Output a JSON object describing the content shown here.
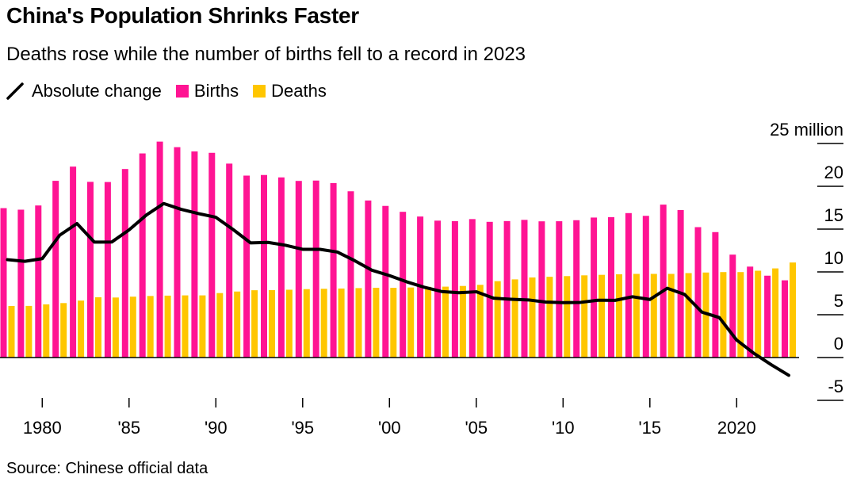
{
  "colors": {
    "births": "#ff1493",
    "deaths": "#ffc600",
    "line": "#000000"
  },
  "chart_data": {
    "type": "bar",
    "title": "China's Population Shrinks Faster",
    "subtitle": "Deaths rose while the number of births fell to a record in 2023",
    "source": "Source: Chinese official data",
    "y_unit_label": "25 million",
    "ylim": [
      -5,
      25
    ],
    "y_ticks": [
      -5,
      0,
      5,
      10,
      15,
      20,
      25
    ],
    "y_tick_labels": [
      "-5",
      "0",
      "5",
      "10",
      "15",
      "20",
      "25 million"
    ],
    "x_ticks": [
      1980,
      1985,
      1990,
      1995,
      2000,
      2005,
      2010,
      2015,
      2020
    ],
    "x_tick_labels": [
      "1980",
      "'85",
      "'90",
      "'95",
      "'00",
      "'05",
      "'10",
      "'15",
      "2020"
    ],
    "legend": {
      "placement": "top-left",
      "entries": [
        "Absolute change",
        "Births",
        "Deaths"
      ]
    },
    "grid": false,
    "x": [
      1978,
      1979,
      1980,
      1981,
      1982,
      1983,
      1984,
      1985,
      1986,
      1987,
      1988,
      1989,
      1990,
      1991,
      1992,
      1993,
      1994,
      1995,
      1996,
      1997,
      1998,
      1999,
      2000,
      2001,
      2002,
      2003,
      2004,
      2005,
      2006,
      2007,
      2008,
      2009,
      2010,
      2011,
      2012,
      2013,
      2014,
      2015,
      2016,
      2017,
      2018,
      2019,
      2020,
      2021,
      2022,
      2023
    ],
    "series": [
      {
        "name": "Births",
        "kind": "bar",
        "values": [
          17.45,
          17.27,
          17.76,
          20.64,
          22.3,
          20.52,
          20.5,
          22.02,
          23.84,
          25.22,
          24.57,
          24.07,
          23.91,
          22.65,
          21.25,
          21.32,
          21.04,
          20.63,
          20.67,
          20.38,
          19.42,
          18.34,
          17.71,
          17.02,
          16.47,
          15.99,
          15.93,
          16.17,
          15.85,
          15.94,
          16.08,
          15.91,
          15.92,
          16.04,
          16.35,
          16.4,
          16.87,
          16.55,
          17.86,
          17.23,
          15.23,
          14.65,
          12.02,
          10.62,
          9.56,
          9.02
        ]
      },
      {
        "name": "Deaths",
        "kind": "bar",
        "values": [
          6.02,
          6.03,
          6.21,
          6.36,
          6.65,
          7.04,
          7.01,
          7.11,
          7.19,
          7.23,
          7.26,
          7.26,
          7.53,
          7.71,
          7.86,
          7.87,
          7.92,
          7.99,
          8.03,
          8.06,
          8.11,
          8.15,
          8.14,
          8.18,
          8.26,
          8.28,
          8.36,
          8.49,
          8.92,
          9.13,
          9.35,
          9.43,
          9.51,
          9.6,
          9.66,
          9.72,
          9.77,
          9.77,
          9.77,
          9.86,
          9.93,
          9.98,
          9.98,
          10.14,
          10.41,
          11.1
        ]
      },
      {
        "name": "Absolute change",
        "kind": "line",
        "values": [
          11.43,
          11.24,
          11.55,
          14.28,
          15.65,
          13.48,
          13.49,
          14.91,
          16.65,
          17.99,
          17.31,
          16.81,
          16.38,
          14.94,
          13.39,
          13.45,
          13.12,
          12.64,
          12.64,
          12.32,
          11.31,
          10.19,
          9.57,
          8.84,
          8.21,
          7.71,
          7.57,
          7.68,
          6.93,
          6.81,
          6.73,
          6.48,
          6.41,
          6.44,
          6.69,
          6.68,
          7.1,
          6.78,
          8.09,
          7.37,
          5.3,
          4.67,
          2.04,
          0.48,
          -0.85,
          -2.08
        ]
      }
    ]
  }
}
